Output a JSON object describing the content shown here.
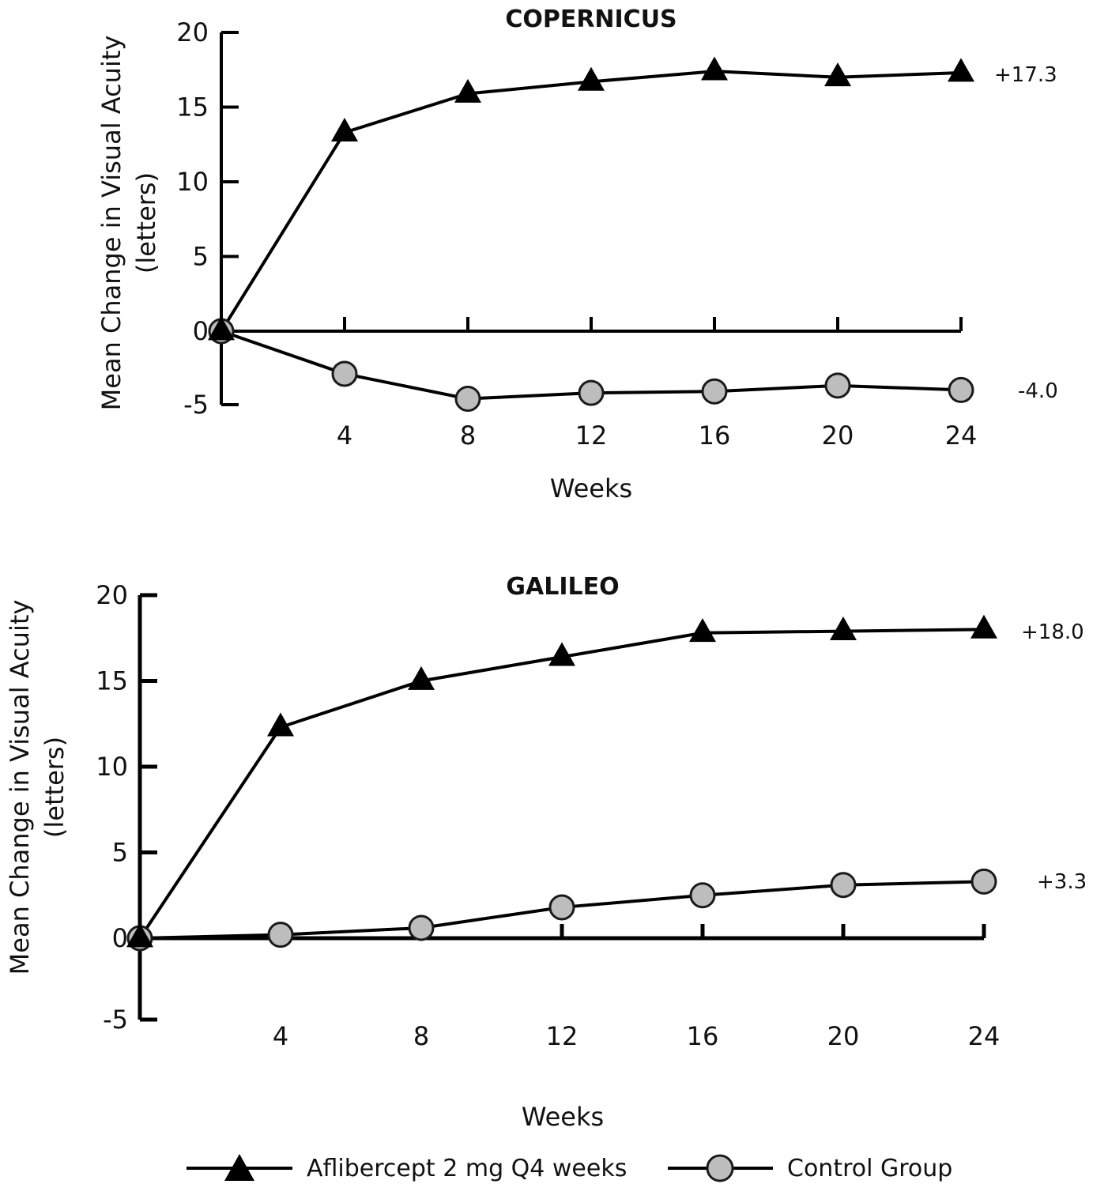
{
  "chart_data": [
    {
      "type": "line",
      "title": "COPERNICUS",
      "xlabel": "Weeks",
      "ylabel": "Mean Change in Visual Acuity",
      "ylabel_sub": "(letters)",
      "x": [
        0,
        4,
        8,
        12,
        16,
        20,
        24
      ],
      "x_tick_labels": [
        "4",
        "8",
        "12",
        "16",
        "20",
        "24"
      ],
      "y_ticks": [
        20,
        15,
        10,
        5,
        0,
        -5
      ],
      "ylim": [
        -5,
        20
      ],
      "xlim": [
        0,
        24
      ],
      "grid": false,
      "series": [
        {
          "name": "Aflibercept 2 mg Q4 weeks",
          "marker": "triangle",
          "values": [
            0,
            13.3,
            15.9,
            16.7,
            17.4,
            17.0,
            17.3
          ],
          "end_label": "+17.3"
        },
        {
          "name": "Control Group",
          "marker": "circle",
          "values": [
            0,
            -2.9,
            -4.6,
            -4.2,
            -4.1,
            -3.7,
            -4.0
          ],
          "end_label": "-4.0"
        }
      ]
    },
    {
      "type": "line",
      "title": "GALILEO",
      "xlabel": "Weeks",
      "ylabel": "Mean Change in Visual Acuity",
      "ylabel_sub": "(letters)",
      "x": [
        0,
        4,
        8,
        12,
        16,
        20,
        24
      ],
      "x_tick_labels": [
        "4",
        "8",
        "12",
        "16",
        "20",
        "24"
      ],
      "y_ticks": [
        20,
        15,
        10,
        5,
        0,
        -5
      ],
      "ylim": [
        -5,
        20
      ],
      "xlim": [
        0,
        24
      ],
      "grid": false,
      "series": [
        {
          "name": "Aflibercept 2 mg Q4 weeks",
          "marker": "triangle",
          "values": [
            0,
            12.3,
            15.0,
            16.4,
            17.8,
            17.9,
            18.0
          ],
          "end_label": "+18.0"
        },
        {
          "name": "Control Group",
          "marker": "circle",
          "values": [
            0,
            0.2,
            0.6,
            1.8,
            2.5,
            3.1,
            3.3
          ],
          "end_label": "+3.3"
        }
      ]
    }
  ],
  "legend": {
    "placement": "bottom",
    "items": [
      {
        "label": "Aflibercept 2 mg Q4 weeks",
        "marker": "triangle"
      },
      {
        "label": "Control Group",
        "marker": "circle"
      }
    ]
  },
  "colors": {
    "line": "#000000",
    "triangle_fill": "#000000",
    "circle_fill": "#bdbdbd",
    "circle_stroke": "#1a1a1a"
  }
}
